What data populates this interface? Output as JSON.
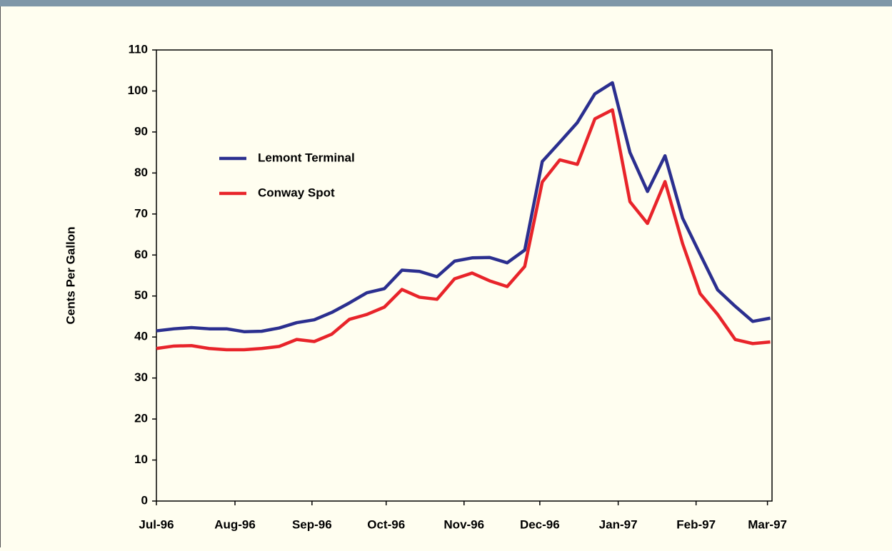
{
  "chart_data": {
    "type": "line",
    "y_label": "Cents Per Gallon",
    "x": [
      0,
      1,
      2,
      3,
      4,
      5,
      6,
      7,
      8,
      9,
      10,
      11,
      12,
      13,
      14,
      15,
      16,
      17,
      18,
      19,
      20,
      21,
      22,
      23,
      24,
      25,
      26,
      27,
      28,
      29,
      30,
      31,
      32,
      33,
      34,
      35
    ],
    "xlim": [
      0,
      35.1
    ],
    "xticks": [
      {
        "value": 0,
        "label": "Jul-96"
      },
      {
        "value": 4.48,
        "label": "Aug-96"
      },
      {
        "value": 8.87,
        "label": "Sep-96"
      },
      {
        "value": 13.1,
        "label": "Oct-96"
      },
      {
        "value": 17.54,
        "label": "Nov-96"
      },
      {
        "value": 21.86,
        "label": "Dec-96"
      },
      {
        "value": 26.33,
        "label": "Jan-97"
      },
      {
        "value": 30.77,
        "label": "Feb-97"
      },
      {
        "value": 34.84,
        "label": "Mar-97"
      }
    ],
    "ylim": [
      0,
      110
    ],
    "yticks": [
      0,
      10,
      20,
      30,
      40,
      50,
      60,
      70,
      80,
      90,
      100,
      110
    ],
    "grid": false,
    "series": [
      {
        "name": "Lemont Terminal",
        "color": "#2b2f8f",
        "values": [
          41.5,
          42,
          42.3,
          42,
          42,
          41.3,
          41.4,
          42.2,
          43.5,
          44.2,
          46,
          48.3,
          50.8,
          51.8,
          56.3,
          56,
          54.7,
          58.5,
          59.3,
          59.4,
          58.1,
          61.2,
          82.8,
          87.5,
          92.3,
          99.3,
          102,
          85,
          75.5,
          84.2,
          69,
          60.2,
          51.5,
          47.5,
          43.8,
          44.6
        ]
      },
      {
        "name": "Conway Spot",
        "color": "#e8242a",
        "values": [
          37.2,
          37.8,
          37.9,
          37.2,
          36.9,
          36.9,
          37.2,
          37.7,
          39.4,
          38.9,
          40.7,
          44.3,
          45.5,
          47.3,
          51.6,
          49.7,
          49.2,
          54.2,
          55.6,
          53.7,
          52.3,
          57.2,
          77.8,
          83.2,
          82.1,
          93.2,
          95.4,
          73,
          67.7,
          77.9,
          62.8,
          50.6,
          45.5,
          39.4,
          38.4,
          38.8
        ]
      }
    ]
  }
}
